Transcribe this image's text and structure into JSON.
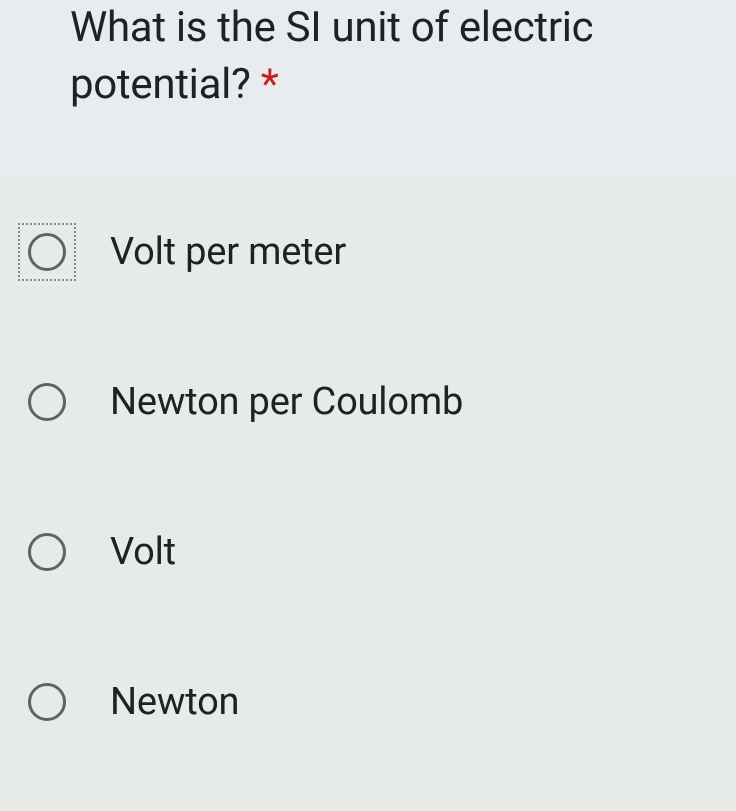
{
  "question": {
    "text": "What is the SI unit of electric potential?",
    "required_marker": "*",
    "required_color": "#c5221f",
    "text_color": "#202124",
    "header_bg": "#e8ecef",
    "font_size": 42
  },
  "options": [
    {
      "label": "Volt per meter",
      "focused": true
    },
    {
      "label": "Newton per Coulomb",
      "focused": false
    },
    {
      "label": "Volt",
      "focused": false
    },
    {
      "label": "Newton",
      "focused": false
    }
  ],
  "styling": {
    "body_bg": "#e6ebe8",
    "radio_border_color": "#5f6368",
    "radio_size": 38,
    "option_font_size": 38,
    "option_text_color": "#202124",
    "focus_border": "2px dotted #888"
  }
}
